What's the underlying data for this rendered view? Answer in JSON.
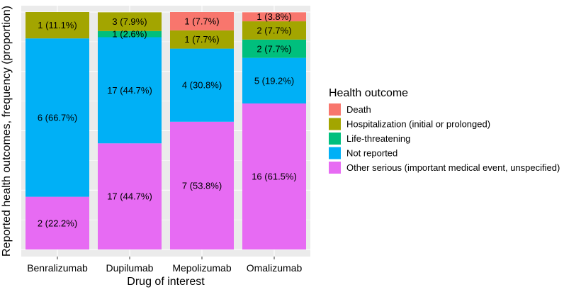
{
  "chart_data": {
    "type": "bar",
    "stacked": true,
    "title": "",
    "xlabel": "Drug of interest",
    "ylabel": "Reported health outcomes, frequency (proportion)",
    "ylim": [
      0,
      1
    ],
    "grid": true,
    "legend_position": "right",
    "legend_title": "Health outcome",
    "categories": [
      "Benralizumab",
      "Dupilumab",
      "Mepolizumab",
      "Omalizumab"
    ],
    "series": [
      {
        "name": "Other serious (important medical event, unspecified)",
        "color": "#E76BF3",
        "values": [
          0.222,
          0.447,
          0.538,
          0.615
        ],
        "labels": [
          "2 (22.2%)",
          "17 (44.7%)",
          "7 (53.8%)",
          "16 (61.5%)"
        ]
      },
      {
        "name": "Not reported",
        "color": "#00B0F6",
        "values": [
          0.667,
          0.447,
          0.308,
          0.192
        ],
        "labels": [
          "6 (66.7%)",
          "17 (44.7%)",
          "4 (30.8%)",
          "5 (19.2%)"
        ]
      },
      {
        "name": "Life-threatening",
        "color": "#00BF7D",
        "values": [
          0,
          0.026,
          0,
          0.077
        ],
        "labels": [
          "",
          "1 (2.6%)",
          "",
          "2 (7.7%)"
        ]
      },
      {
        "name": "Hospitalization (initial or prolonged)",
        "color": "#A3A500",
        "values": [
          0.111,
          0.079,
          0.077,
          0.077
        ],
        "labels": [
          "1 (11.1%)",
          "3 (7.9%)",
          "1 (7.7%)",
          "2 (7.7%)"
        ]
      },
      {
        "name": "Death",
        "color": "#F8766D",
        "values": [
          0,
          0,
          0.077,
          0.038
        ],
        "labels": [
          "",
          "",
          "1 (7.7%)",
          "1 (3.8%)"
        ]
      }
    ],
    "legend_order": [
      "Death",
      "Hospitalization (initial or prolonged)",
      "Life-threatening",
      "Not reported",
      "Other serious (important medical event, unspecified)"
    ]
  },
  "colors": {
    "panel_background": "#EBEBEB",
    "grid_line": "#FFFFFF",
    "text": "#1A1A1A",
    "axis_text": "#4D4D4D"
  }
}
